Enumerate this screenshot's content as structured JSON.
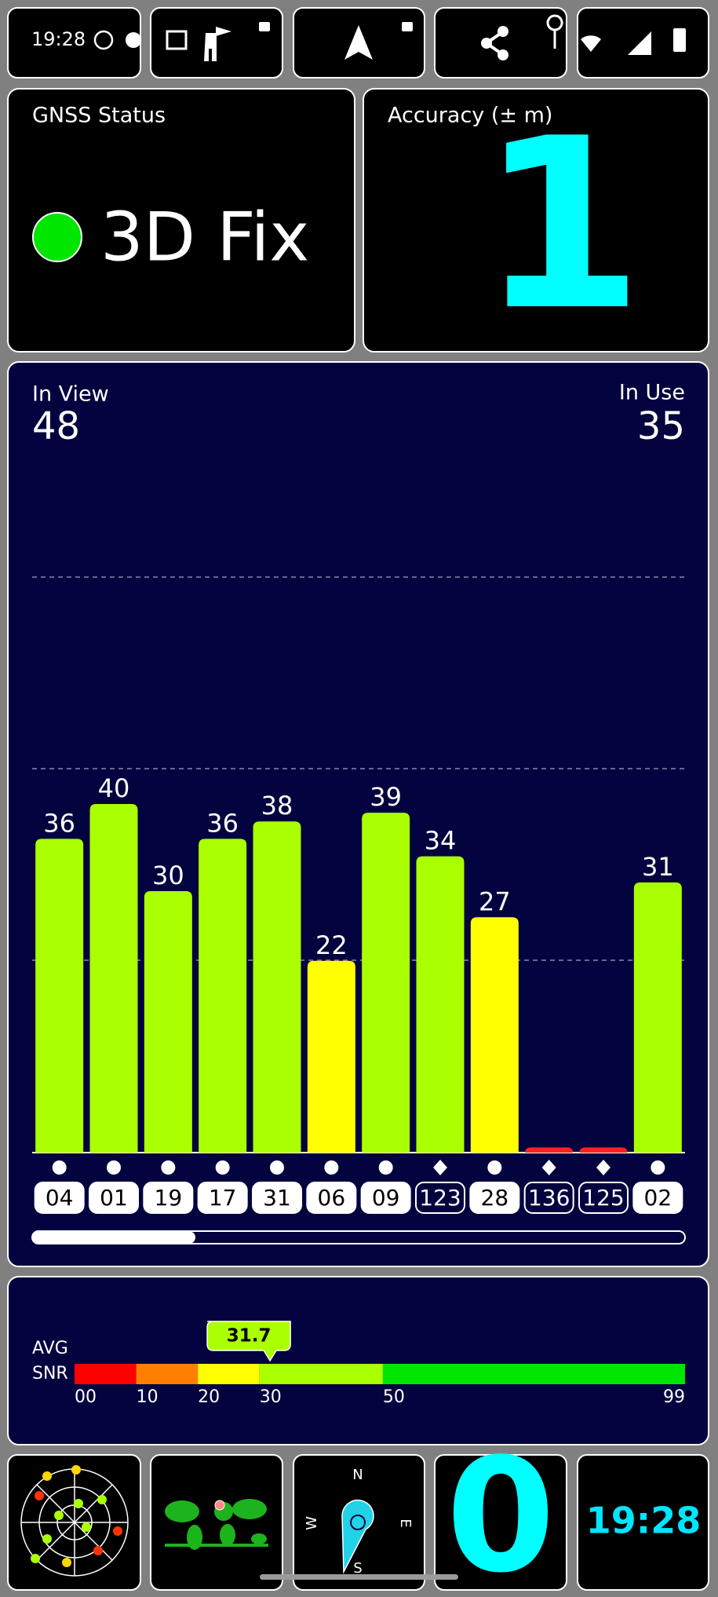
{
  "status_bar": {
    "time": "19:28"
  },
  "gnss_status": {
    "title": "GNSS Status",
    "fix": "3D Fix"
  },
  "accuracy": {
    "title": "Accuracy (± m)",
    "value": 1
  },
  "satellites": {
    "in_view_label": "In View",
    "in_view": 48,
    "in_use_label": "In Use",
    "in_use": 35
  },
  "chart_data": {
    "type": "bar",
    "categories": [
      "04",
      "01",
      "19",
      "17",
      "31",
      "06",
      "09",
      "123",
      "28",
      "136",
      "125",
      "02"
    ],
    "values": [
      36,
      40,
      30,
      36,
      38,
      22,
      39,
      34,
      27,
      0.6,
      0.6,
      31
    ],
    "value_labels": [
      "36",
      "40",
      "30",
      "36",
      "38",
      "22",
      "39",
      "34",
      "27",
      null,
      null,
      "31"
    ],
    "colors": [
      "#aaff00",
      "#aaff00",
      "#aaff00",
      "#aaff00",
      "#aaff00",
      "#ffff00",
      "#aaff00",
      "#aaff00",
      "#ffff00",
      "#ff2020",
      "#ff2020",
      "#aaff00"
    ],
    "markers": [
      "circle",
      "circle",
      "circle",
      "circle",
      "circle",
      "circle",
      "circle",
      "diamond",
      "circle",
      "diamond",
      "diamond",
      "circle"
    ],
    "ylim": [
      0,
      80
    ]
  },
  "snr": {
    "label_top": "AVG",
    "label_bottom": "SNR",
    "average": 31.7,
    "xlim": [
      0,
      99
    ],
    "scale": [
      {
        "from": 0,
        "to": 10,
        "color": "#ff0000"
      },
      {
        "from": 10,
        "to": 20,
        "color": "#ff8000"
      },
      {
        "from": 20,
        "to": 30,
        "color": "#ffff00"
      },
      {
        "from": 30,
        "to": 50,
        "color": "#aaff00"
      },
      {
        "from": 50,
        "to": 99,
        "color": "#00e600"
      }
    ],
    "ticks": [
      {
        "value": 0,
        "label": "00"
      },
      10,
      20,
      30,
      50,
      99
    ]
  },
  "compass": {
    "north": "N",
    "east": "E",
    "south": "S",
    "west": "W"
  },
  "speed": 0,
  "clock": "19:28"
}
